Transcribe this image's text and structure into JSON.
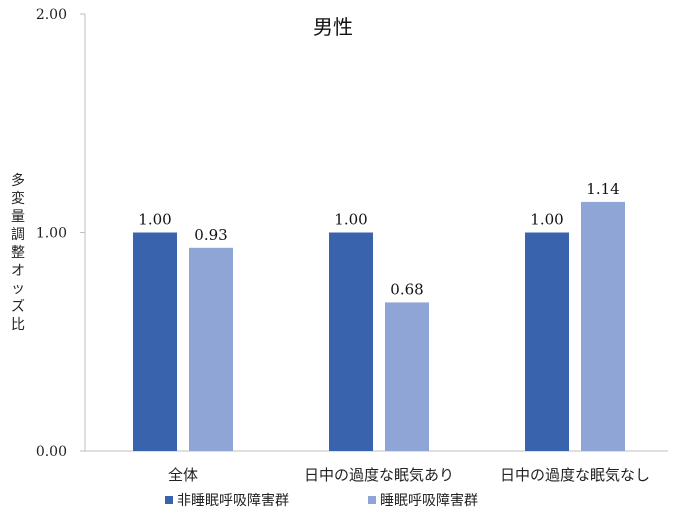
{
  "chart_data": {
    "type": "bar",
    "title": "男性",
    "ylabel": "多変量調整オッズ比",
    "xlabel": "",
    "categories": [
      "全体",
      "日中の過度な眠気あり",
      "日中の過度な眠気なし"
    ],
    "series": [
      {
        "name": "非睡眠呼吸障害群",
        "color": "#3a63ad",
        "values": [
          1.0,
          1.0,
          1.0
        ],
        "labels": [
          "1.00",
          "1.00",
          "1.00"
        ]
      },
      {
        "name": "睡眠呼吸障害群",
        "color": "#8fa5d6",
        "values": [
          0.93,
          0.68,
          1.14
        ],
        "labels": [
          "0.93",
          "0.68",
          "1.14"
        ]
      }
    ],
    "ylim": [
      0,
      2.0
    ],
    "yticks": [
      "0.00",
      "1.00",
      "2.00"
    ],
    "ytick_values": [
      0,
      1.0,
      2.0
    ],
    "grid": false,
    "legend_position": "bottom"
  }
}
